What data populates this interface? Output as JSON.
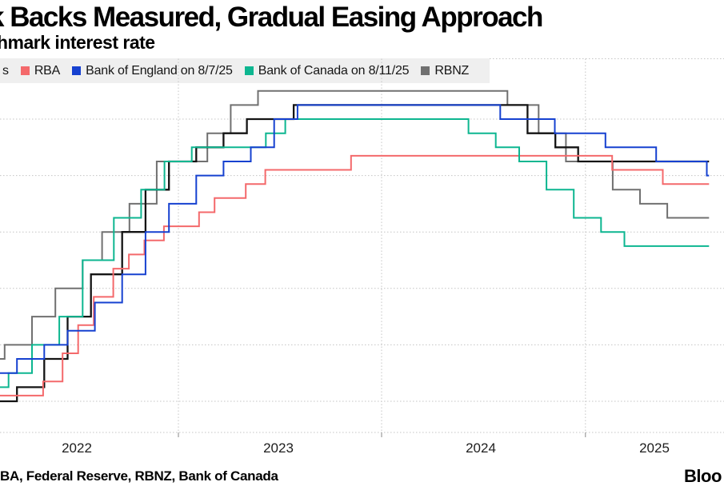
{
  "header": {
    "title": "k Backs Measured, Gradual Easing Approach",
    "subtitle": "hmark interest rate"
  },
  "legend": {
    "items": [
      {
        "label": "s",
        "swatch": ""
      },
      {
        "label": "RBA",
        "swatch": "#f4696b"
      },
      {
        "label": "Bank of England on 8/7/25",
        "swatch": "#1641d0"
      },
      {
        "label": "Bank of Canada on 8/11/25",
        "swatch": "#0db690"
      },
      {
        "label": "RBNZ",
        "swatch": "#707070"
      }
    ]
  },
  "footer": {
    "source": "BA, Federal Reserve, RBNZ, Bank of Canada",
    "brand": "Bloo"
  },
  "chart_data": {
    "type": "line",
    "subtype": "step-after",
    "title": "k Backs Measured, Gradual Easing Approach",
    "ylabel": "hmark interest rate",
    "grid": "dotted",
    "x_tick_labels": [
      "2022",
      "2023",
      "2024",
      "2025"
    ],
    "x_year_gridlines": [
      "2023-01-01",
      "2024-01-01",
      "2025-01-01"
    ],
    "y_gridlines": [
      0,
      1,
      2,
      3,
      4,
      5
    ],
    "ylim": [
      -0.55,
      6.1
    ],
    "x_start": "2022-02-14",
    "data_end": "2025-08-11",
    "series": [
      {
        "key": "fed",
        "legend_label": "s",
        "color": "#141414",
        "points": [
          [
            "2022-02-14",
            0.0
          ],
          [
            "2022-03-17",
            0.25
          ],
          [
            "2022-05-05",
            0.75
          ],
          [
            "2022-06-16",
            1.5
          ],
          [
            "2022-07-28",
            2.25
          ],
          [
            "2022-09-22",
            3.0
          ],
          [
            "2022-11-03",
            3.75
          ],
          [
            "2022-12-15",
            4.25
          ],
          [
            "2023-02-02",
            4.5
          ],
          [
            "2023-03-23",
            4.75
          ],
          [
            "2023-05-04",
            5.0
          ],
          [
            "2023-07-27",
            5.25
          ],
          [
            "2024-09-19",
            4.75
          ],
          [
            "2024-11-08",
            4.5
          ],
          [
            "2024-12-19",
            4.25
          ]
        ]
      },
      {
        "key": "rba",
        "legend_label": "RBA",
        "color": "#f4696b",
        "points": [
          [
            "2022-02-14",
            0.1
          ],
          [
            "2022-05-03",
            0.35
          ],
          [
            "2022-06-07",
            0.85
          ],
          [
            "2022-07-05",
            1.35
          ],
          [
            "2022-08-02",
            1.85
          ],
          [
            "2022-09-06",
            2.35
          ],
          [
            "2022-10-04",
            2.6
          ],
          [
            "2022-11-01",
            2.85
          ],
          [
            "2022-12-06",
            3.1
          ],
          [
            "2023-02-07",
            3.35
          ],
          [
            "2023-03-07",
            3.6
          ],
          [
            "2023-05-02",
            3.85
          ],
          [
            "2023-06-06",
            4.1
          ],
          [
            "2023-11-07",
            4.35
          ],
          [
            "2025-02-18",
            4.1
          ],
          [
            "2025-05-20",
            3.85
          ]
        ]
      },
      {
        "key": "boe",
        "legend_label": "Bank of England on 8/7/25",
        "color": "#1641d0",
        "points": [
          [
            "2022-02-14",
            0.5
          ],
          [
            "2022-03-17",
            0.75
          ],
          [
            "2022-05-05",
            1.0
          ],
          [
            "2022-06-16",
            1.25
          ],
          [
            "2022-08-04",
            1.75
          ],
          [
            "2022-09-22",
            2.25
          ],
          [
            "2022-11-03",
            3.0
          ],
          [
            "2022-12-15",
            3.5
          ],
          [
            "2023-02-02",
            4.0
          ],
          [
            "2023-03-23",
            4.25
          ],
          [
            "2023-05-11",
            4.5
          ],
          [
            "2023-06-22",
            5.0
          ],
          [
            "2023-08-03",
            5.25
          ],
          [
            "2024-08-01",
            5.0
          ],
          [
            "2024-11-07",
            4.75
          ],
          [
            "2025-02-06",
            4.5
          ],
          [
            "2025-05-08",
            4.25
          ],
          [
            "2025-08-07",
            4.0
          ]
        ]
      },
      {
        "key": "boc",
        "legend_label": "Bank of Canada on 8/11/25",
        "color": "#0db690",
        "points": [
          [
            "2022-02-14",
            0.25
          ],
          [
            "2022-03-02",
            0.5
          ],
          [
            "2022-04-13",
            1.0
          ],
          [
            "2022-06-01",
            1.5
          ],
          [
            "2022-07-13",
            2.5
          ],
          [
            "2022-09-07",
            3.25
          ],
          [
            "2022-10-26",
            3.75
          ],
          [
            "2022-12-07",
            4.25
          ],
          [
            "2023-01-25",
            4.5
          ],
          [
            "2023-06-07",
            4.75
          ],
          [
            "2023-07-12",
            5.0
          ],
          [
            "2024-06-05",
            4.75
          ],
          [
            "2024-07-24",
            4.5
          ],
          [
            "2024-09-04",
            4.25
          ],
          [
            "2024-10-23",
            3.75
          ],
          [
            "2024-12-11",
            3.25
          ],
          [
            "2025-01-29",
            3.0
          ],
          [
            "2025-03-12",
            2.75
          ]
        ]
      },
      {
        "key": "rbnz",
        "legend_label": "RBNZ",
        "color": "#707070",
        "points": [
          [
            "2022-02-14",
            0.75
          ],
          [
            "2022-02-23",
            1.0
          ],
          [
            "2022-04-13",
            1.5
          ],
          [
            "2022-05-25",
            2.0
          ],
          [
            "2022-07-13",
            2.5
          ],
          [
            "2022-08-17",
            3.0
          ],
          [
            "2022-10-05",
            3.5
          ],
          [
            "2022-11-23",
            4.25
          ],
          [
            "2023-02-22",
            4.75
          ],
          [
            "2023-04-05",
            5.25
          ],
          [
            "2023-05-24",
            5.5
          ],
          [
            "2024-08-14",
            5.25
          ],
          [
            "2024-10-09",
            4.75
          ],
          [
            "2024-11-27",
            4.25
          ],
          [
            "2025-02-19",
            3.75
          ],
          [
            "2025-04-09",
            3.5
          ],
          [
            "2025-05-28",
            3.25
          ]
        ]
      }
    ]
  }
}
